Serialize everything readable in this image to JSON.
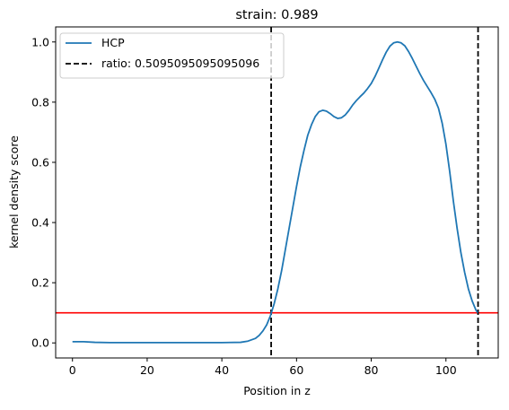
{
  "chart_data": {
    "type": "line",
    "title": "strain: 0.989",
    "xlabel": "Position in z",
    "ylabel": "kernel density score",
    "xlim": [
      -4.5,
      114
    ],
    "ylim": [
      -0.05,
      1.05
    ],
    "xticks": [
      0,
      20,
      40,
      60,
      80,
      100
    ],
    "yticks": [
      0.0,
      0.2,
      0.4,
      0.6,
      0.8,
      1.0
    ],
    "xtick_labels": [
      "0",
      "20",
      "40",
      "60",
      "80",
      "100"
    ],
    "ytick_labels": [
      "0.0",
      "0.2",
      "0.4",
      "0.6",
      "0.8",
      "1.0"
    ],
    "grid": false,
    "legend_position": "top-left",
    "series": [
      {
        "name": "HCP",
        "color": "#1f77b4",
        "x": [
          0,
          3,
          6,
          10,
          20,
          30,
          40,
          45,
          47,
          49,
          50,
          51,
          52,
          53,
          54,
          55,
          56,
          57,
          58,
          59,
          60,
          61,
          62,
          63,
          64,
          65,
          66,
          67,
          68,
          69,
          70,
          71,
          72,
          73,
          74,
          75,
          76,
          77,
          78,
          79,
          80,
          81,
          82,
          83,
          84,
          85,
          86,
          87,
          88,
          89,
          90,
          91,
          92,
          93,
          94,
          95,
          96,
          97,
          98,
          99,
          100,
          101,
          102,
          103,
          104,
          105,
          106,
          107,
          108,
          108.5
        ],
        "y": [
          0.004,
          0.004,
          0.002,
          0.001,
          0.001,
          0.001,
          0.001,
          0.002,
          0.006,
          0.015,
          0.025,
          0.04,
          0.06,
          0.09,
          0.13,
          0.18,
          0.24,
          0.31,
          0.38,
          0.45,
          0.52,
          0.585,
          0.64,
          0.69,
          0.725,
          0.752,
          0.768,
          0.773,
          0.77,
          0.762,
          0.752,
          0.746,
          0.748,
          0.757,
          0.772,
          0.79,
          0.805,
          0.818,
          0.83,
          0.845,
          0.862,
          0.885,
          0.912,
          0.94,
          0.966,
          0.986,
          0.997,
          1.0,
          0.997,
          0.987,
          0.968,
          0.945,
          0.92,
          0.895,
          0.872,
          0.852,
          0.832,
          0.81,
          0.78,
          0.73,
          0.66,
          0.57,
          0.47,
          0.38,
          0.3,
          0.235,
          0.18,
          0.14,
          0.11,
          0.1
        ]
      }
    ],
    "vlines": {
      "name": "ratio: 0.5095095095095096",
      "color": "#000000",
      "style": "dashed",
      "x": [
        53.2,
        108.6
      ]
    },
    "hline": {
      "y": 0.1,
      "color": "#ff0000"
    }
  }
}
